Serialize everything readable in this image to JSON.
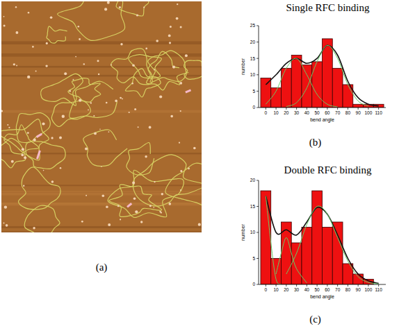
{
  "chart_data": [
    {
      "type": "image",
      "panel_label": "(a)"
    },
    {
      "type": "histogram",
      "title": "Single RFC binding",
      "panel_label": "(b)",
      "x_label": "bend angle",
      "y_label": "number",
      "bins": [
        -5,
        5,
        15,
        25,
        35,
        45,
        55,
        65,
        75,
        85,
        95,
        105,
        115
      ],
      "values": [
        9,
        6,
        12,
        16,
        13,
        14,
        21,
        12,
        7,
        1,
        1,
        1
      ],
      "color": "#ee1111",
      "xlim": [
        -7,
        117
      ],
      "xticks": [
        0,
        10,
        20,
        30,
        40,
        50,
        60,
        70,
        80,
        90,
        100,
        110
      ],
      "ylim": [
        0,
        25
      ],
      "yticks": [
        0,
        5,
        10,
        15,
        20,
        25
      ],
      "series": [
        {
          "type": "line",
          "color": "#111111",
          "x": [
            0,
            10,
            20,
            30,
            40,
            50,
            60,
            70,
            80,
            90,
            100,
            110
          ],
          "values": [
            7,
            10,
            13.5,
            15,
            13.5,
            15,
            19,
            16,
            8,
            3,
            1,
            0.5
          ]
        },
        {
          "type": "line",
          "color": "#66cc66",
          "x": [
            0,
            10,
            20,
            30,
            40,
            50,
            60,
            70
          ],
          "values": [
            1,
            5,
            12,
            15,
            10,
            4,
            1,
            0.2
          ]
        },
        {
          "type": "line",
          "color": "#66cc66",
          "x": [
            20,
            30,
            40,
            50,
            60,
            70,
            80,
            90,
            100
          ],
          "values": [
            0.3,
            1.5,
            6,
            14,
            19,
            15,
            7,
            2,
            0.4
          ]
        }
      ]
    },
    {
      "type": "histogram",
      "title": "Double RFC binding",
      "panel_label": "(c)",
      "x_label": "bend angle",
      "y_label": "number",
      "bins": [
        -5,
        5,
        15,
        25,
        35,
        45,
        55,
        65,
        75,
        85,
        95,
        105
      ],
      "values": [
        18,
        5,
        12,
        8,
        11,
        18,
        11,
        12,
        4,
        2,
        1
      ],
      "color": "#ee1111",
      "xlim": [
        -7,
        117
      ],
      "xticks": [
        0,
        10,
        20,
        30,
        40,
        50,
        60,
        70,
        80,
        90,
        100,
        110
      ],
      "ylim": [
        0,
        20
      ],
      "yticks": [
        0,
        5,
        10,
        15,
        20
      ],
      "series": [
        {
          "type": "line",
          "color": "#111111",
          "x": [
            0,
            10,
            20,
            30,
            40,
            50,
            60,
            70,
            80,
            90,
            100,
            110
          ],
          "values": [
            17,
            10,
            10.5,
            9.5,
            12,
            14.8,
            13.5,
            9.5,
            5,
            2,
            0.7,
            0.2
          ]
        },
        {
          "type": "line",
          "color": "#66cc66",
          "x": [
            0,
            5,
            10,
            15
          ],
          "values": [
            17,
            8,
            1,
            0
          ]
        },
        {
          "type": "line",
          "color": "#66cc66",
          "x": [
            10,
            15,
            20,
            25,
            30,
            40
          ],
          "values": [
            2,
            6,
            9,
            6,
            3,
            0.3
          ]
        },
        {
          "type": "line",
          "color": "#66cc66",
          "x": [
            20,
            30,
            40,
            50,
            60,
            70,
            80,
            90,
            100,
            110
          ],
          "values": [
            2,
            6,
            11.5,
            15,
            13.5,
            9,
            4.5,
            1.5,
            0.4,
            0.1
          ]
        }
      ]
    }
  ]
}
